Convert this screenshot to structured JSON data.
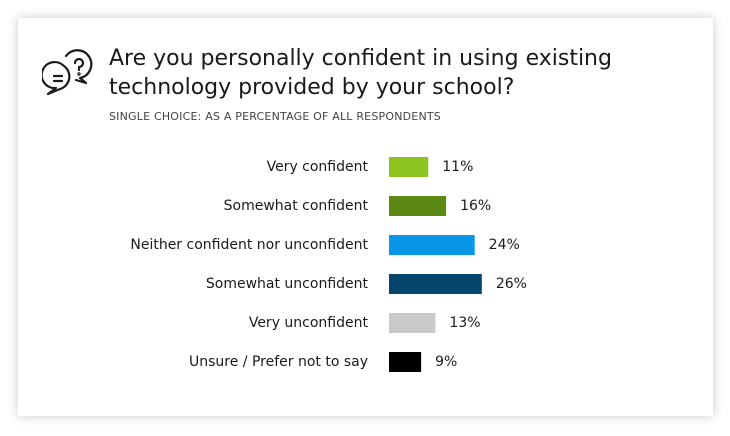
{
  "chart_data": {
    "type": "bar",
    "title": "Are you personally confident in using existing technology provided by your school?",
    "subtitle": "SINGLE CHOICE: AS A PERCENTAGE OF ALL RESPONDENTS",
    "categories": [
      "Very confident",
      "Somewhat confident",
      "Neither confident nor unconfident",
      "Somewhat unconfident",
      "Very unconfident",
      "Unsure / Prefer not to say"
    ],
    "values": [
      11,
      16,
      24,
      26,
      13,
      9
    ],
    "value_labels": [
      "11%",
      "16%",
      "24%",
      "26%",
      "13%",
      "9%"
    ],
    "colors": [
      "#8cc31e",
      "#5b8913",
      "#0a96e8",
      "#05456d",
      "#c9c9c9",
      "#000000"
    ]
  }
}
